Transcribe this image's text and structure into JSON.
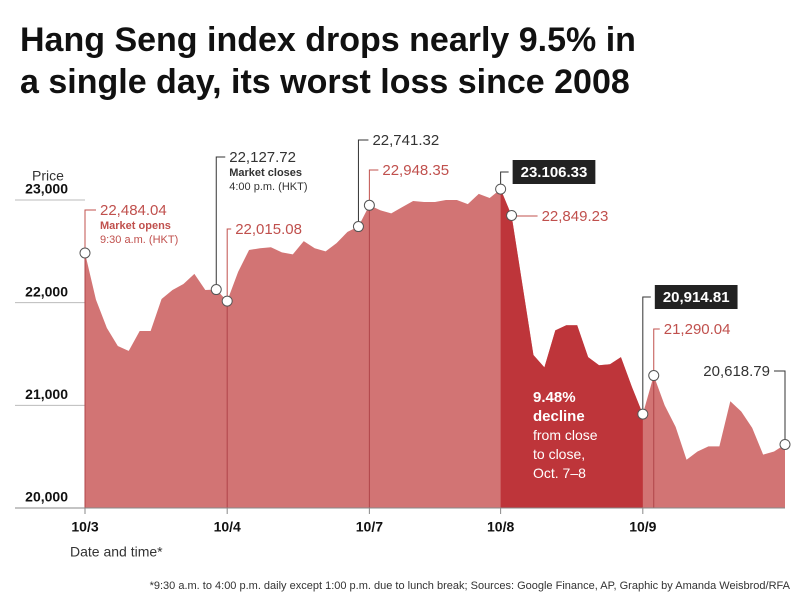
{
  "chart_data": {
    "type": "area",
    "title": [
      "Hang Seng index drops nearly 9.5% in",
      "a single day, its worst loss since 2008"
    ],
    "y_label": "Price",
    "x_label": "Date and time*",
    "footnote": "*9:30 a.m. to 4:00 p.m. daily except 1:00 p.m. due to lunch break; Sources: Google Finance, AP, Graphic by Amanda Weisbrod/RFA",
    "categories": [
      "10/3",
      null,
      null,
      null,
      null,
      null,
      null,
      null,
      null,
      null,
      null,
      null,
      null,
      "10/4",
      null,
      null,
      null,
      null,
      null,
      null,
      null,
      null,
      null,
      null,
      null,
      null,
      "10/7",
      null,
      null,
      null,
      null,
      null,
      null,
      null,
      null,
      null,
      null,
      null,
      "10/8",
      null,
      null,
      null,
      null,
      null,
      null,
      null,
      null,
      null,
      null,
      null,
      null,
      "10/9",
      null,
      null,
      null,
      null,
      null,
      null,
      null,
      null,
      null,
      null,
      null,
      null,
      null
    ],
    "series": [
      {
        "name": "Hang Seng index",
        "color": "#d27474",
        "highlight_color": "#be353a",
        "values": [
          22484.04,
          22030,
          21753,
          21578,
          21530,
          21724,
          21724,
          22036,
          22123,
          22182,
          22280,
          22123,
          22127.72,
          22015.08,
          22300,
          22513,
          22530,
          22540,
          22490,
          22470,
          22600,
          22530,
          22500,
          22580,
          22690,
          22741.32,
          22948.35,
          22900,
          22870,
          22930,
          22990,
          22980,
          22980,
          23000,
          23000,
          22960,
          23060,
          23020,
          23106.33,
          22849.23,
          22170,
          21490,
          21370,
          21730,
          21780,
          21780,
          21470,
          21390,
          21400,
          21470,
          21180,
          20914.81,
          21290.04,
          21000,
          20790,
          20470,
          20550,
          20600,
          20600,
          21040,
          20940,
          20780,
          20520,
          20550,
          20618.79
        ]
      }
    ],
    "ylim": [
      20000,
      23000
    ],
    "yticks": [
      {
        "value": 20000,
        "label": "20,000"
      },
      {
        "value": 21000,
        "label": "21,000"
      },
      {
        "value": 22000,
        "label": "22,000"
      },
      {
        "value": 23000,
        "label": "23,000"
      }
    ],
    "annotations": [
      {
        "index": 0,
        "label": "22,484.04",
        "title": "Market opens",
        "subtitle": "9:30 a.m. (HKT)",
        "color": "#c0504d"
      },
      {
        "index": 12,
        "label": "22,127.72",
        "title": "Market closes",
        "subtitle": "4:00 p.m. (HKT)",
        "color": "#333333"
      },
      {
        "index": 13,
        "label": "22,015.08",
        "color": "#c0504d"
      },
      {
        "index": 25,
        "label": "22,741.32",
        "color": "#333333"
      },
      {
        "index": 26,
        "label": "22,948.35",
        "color": "#c0504d"
      },
      {
        "index": 38,
        "label": "23.106.33",
        "color": "#222222",
        "boxed": true
      },
      {
        "index": 39,
        "label": "22,849.23",
        "color": "#c0504d"
      },
      {
        "index": 51,
        "label": "20,914.81",
        "color": "#222222",
        "boxed": true
      },
      {
        "index": 52,
        "label": "21,290.04",
        "color": "#c0504d"
      },
      {
        "index": 64,
        "label": "20,618.79",
        "color": "#333333"
      }
    ],
    "decline_note": {
      "title": [
        "9.48%",
        "decline"
      ],
      "text": [
        "from close",
        "to close,",
        "Oct. 7–8"
      ]
    }
  }
}
